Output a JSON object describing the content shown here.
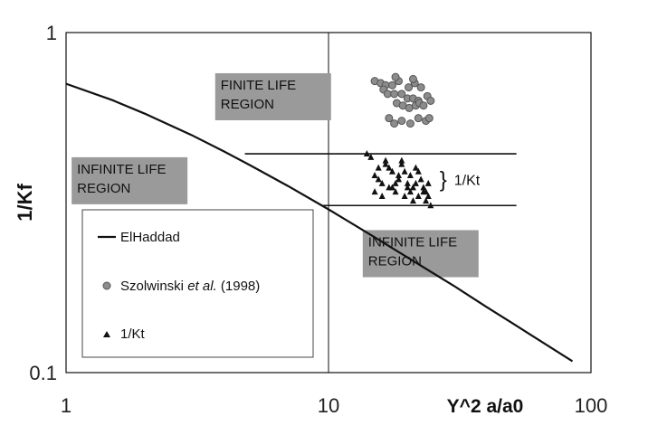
{
  "chart_data": {
    "type": "scatter",
    "title": "",
    "xlabel": "Y^2 a/a0",
    "ylabel": "1/Kf",
    "xscale": "log",
    "yscale": "log",
    "xlim": [
      1,
      100
    ],
    "ylim": [
      0.1,
      1
    ],
    "x_tick_labels": [
      "1",
      "10",
      "100"
    ],
    "y_tick_labels": [
      "1",
      "0.1"
    ],
    "grid": false,
    "reference_line_x": 10,
    "regions": [
      {
        "label_lines": [
          "FINITE LIFE",
          "REGION"
        ],
        "x": 3.7,
        "y": 0.68
      },
      {
        "label_lines": [
          "INFINITE LIFE",
          "REGION"
        ],
        "x": 1.05,
        "y": 0.385
      },
      {
        "label_lines": [
          "INFINITE LIFE",
          "REGION"
        ],
        "x": 13.5,
        "y": 0.235
      }
    ],
    "kt_band": {
      "label": "1/Kt",
      "upper": {
        "x": [
          4.8,
          52
        ],
        "y": 0.44
      },
      "lower": {
        "x": [
          9.5,
          52
        ],
        "y": 0.31
      }
    },
    "legend": {
      "placement": "bottom-left",
      "entries": [
        {
          "label": "ElHaddad",
          "marker": "line"
        },
        {
          "label_plain": "Szolwinski ",
          "label_italic": "et al.",
          "label_tail": " (1998)",
          "marker": "circle"
        },
        {
          "label": "1/Kt",
          "marker": "triangle"
        }
      ]
    },
    "series": [
      {
        "name": "ElHaddad",
        "type": "line",
        "color": "#111111",
        "x": [
          1,
          1.5,
          2,
          3,
          4,
          5,
          7,
          10,
          15,
          20,
          30,
          40,
          50,
          60,
          85
        ],
        "y": [
          0.707,
          0.633,
          0.577,
          0.5,
          0.447,
          0.408,
          0.354,
          0.302,
          0.25,
          0.218,
          0.18,
          0.156,
          0.14,
          0.128,
          0.108
        ]
      },
      {
        "name": "Szolwinski et al. (1998)",
        "type": "scatter",
        "marker": "circle",
        "color": "#8c8c8c",
        "x": [
          15.0,
          15.8,
          16.5,
          17.5,
          18.5,
          16.2,
          16.8,
          17.8,
          19.0,
          20.2,
          21.3,
          22.5,
          23.8,
          24.5,
          20.0,
          21.0,
          22.0,
          18.2,
          19.2,
          20.3,
          21.5,
          22.2,
          23.0,
          17.0,
          17.8,
          19.0,
          20.5,
          22.0,
          23.5,
          24.2,
          21.0,
          18.0
        ],
        "y": [
          0.72,
          0.71,
          0.7,
          0.7,
          0.72,
          0.68,
          0.66,
          0.66,
          0.66,
          0.69,
          0.71,
          0.69,
          0.65,
          0.63,
          0.64,
          0.64,
          0.63,
          0.62,
          0.61,
          0.6,
          0.61,
          0.62,
          0.61,
          0.56,
          0.54,
          0.55,
          0.54,
          0.56,
          0.55,
          0.56,
          0.73,
          0.74
        ]
      },
      {
        "name": "1/Kt",
        "type": "scatter",
        "marker": "triangle",
        "color": "#111111",
        "x": [
          14.0,
          14.5,
          15.0,
          15.5,
          16.0,
          16.5,
          17.0,
          17.5,
          18.0,
          18.5,
          19.0,
          19.5,
          20.0,
          20.5,
          21.0,
          21.5,
          22.0,
          22.5,
          23.0,
          23.5,
          24.0,
          24.5,
          15.0,
          16.0,
          17.0,
          18.0,
          19.0,
          20.0,
          21.0,
          22.0,
          23.0,
          24.0,
          15.5,
          17.5,
          19.5,
          21.5,
          23.5,
          16.5,
          18.5,
          20.5
        ],
        "y": [
          0.44,
          0.43,
          0.38,
          0.4,
          0.36,
          0.42,
          0.35,
          0.39,
          0.34,
          0.37,
          0.41,
          0.33,
          0.36,
          0.38,
          0.35,
          0.4,
          0.33,
          0.37,
          0.34,
          0.32,
          0.36,
          0.31,
          0.34,
          0.33,
          0.4,
          0.36,
          0.42,
          0.35,
          0.32,
          0.39,
          0.35,
          0.33,
          0.37,
          0.35,
          0.39,
          0.36,
          0.34,
          0.41,
          0.38,
          0.34
        ]
      }
    ]
  }
}
